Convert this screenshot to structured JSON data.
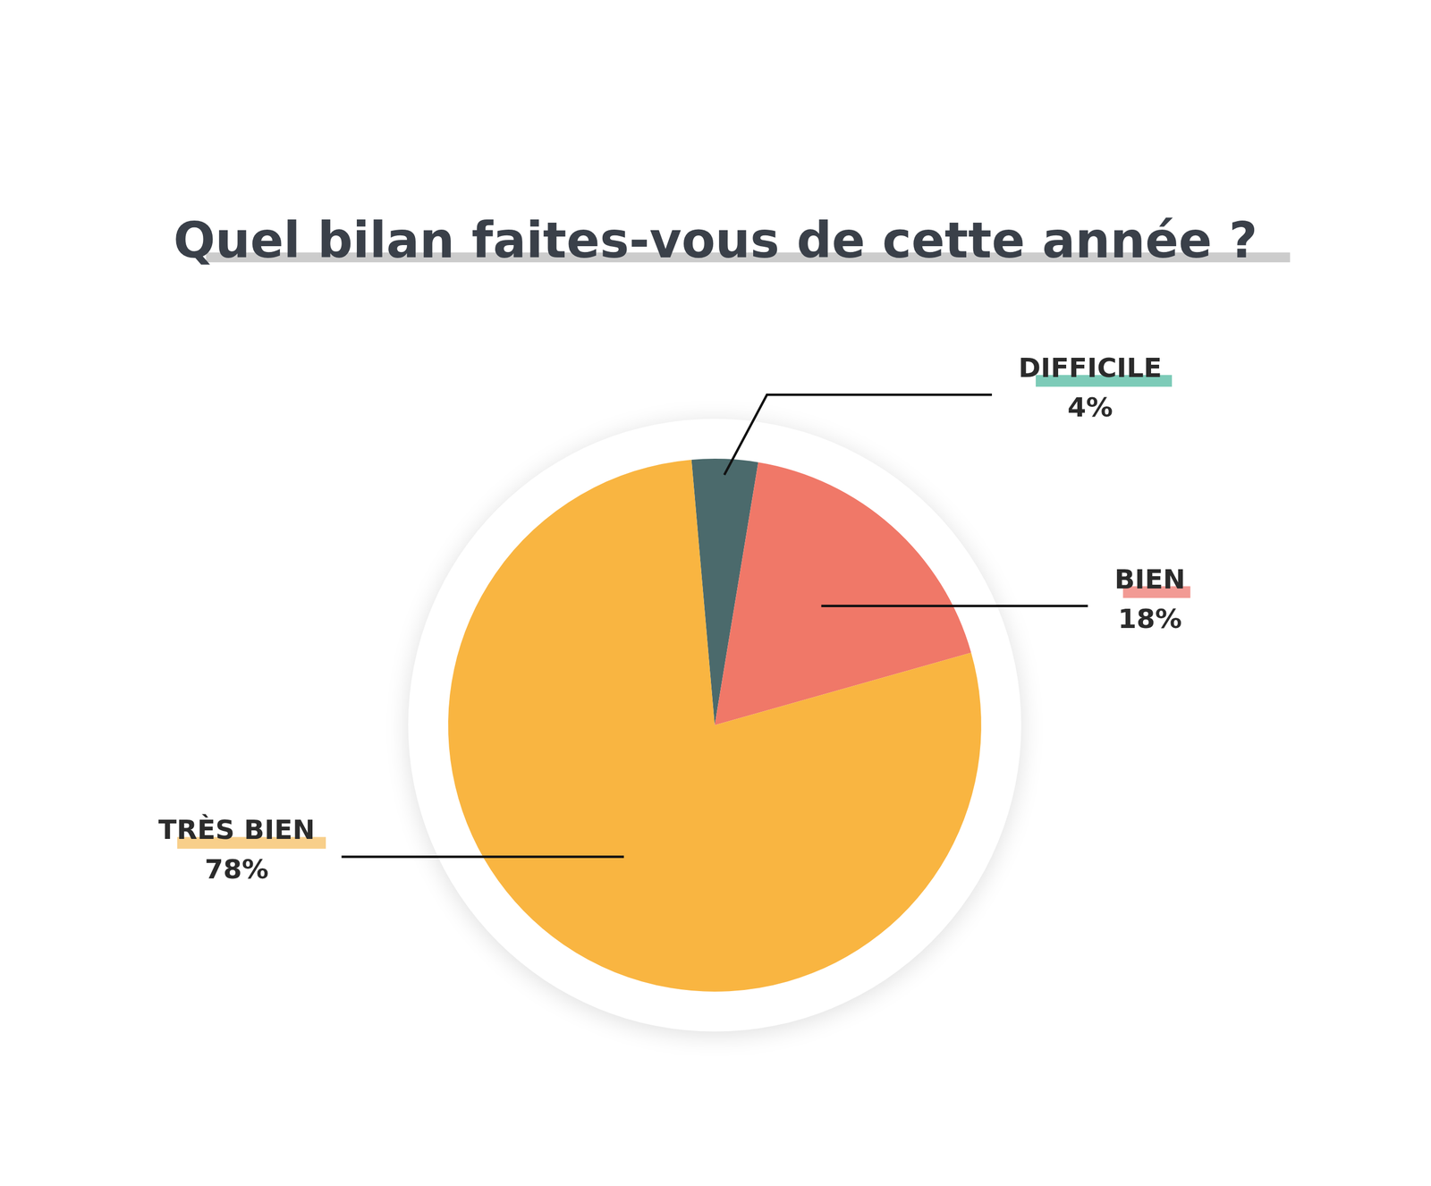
{
  "chart_data": {
    "type": "pie",
    "title": "Quel bilan faites-vous de cette année ?",
    "categories": [
      "DIFFICILE",
      "BIEN",
      "TRÈS BIEN"
    ],
    "values": [
      4,
      18,
      78
    ],
    "value_labels": [
      "4%",
      "18%",
      "78%"
    ],
    "colors": [
      "#4b6a6c",
      "#f07868",
      "#f9b541"
    ],
    "data_labels": true
  }
}
